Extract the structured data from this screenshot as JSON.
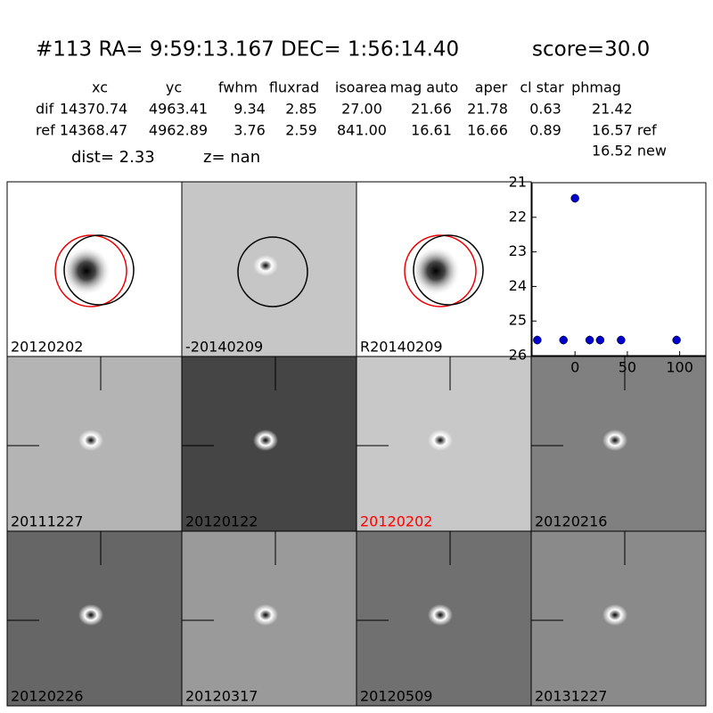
{
  "header": {
    "title": "#113   RA= 9:59:13.167 DEC= 1:56:14.40",
    "score": "score=30.0",
    "table": {
      "columns": [
        "xc",
        "yc",
        "fwhm",
        "fluxrad",
        "isoarea",
        "mag auto",
        "aper",
        "cl star",
        "phmag"
      ],
      "rows": [
        {
          "label": "dif",
          "cells": [
            "14370.74",
            "4963.41",
            "9.34",
            "2.85",
            "27.00",
            "21.66",
            "21.78",
            "0.63",
            "21.42"
          ]
        },
        {
          "label": "ref",
          "cells": [
            "14368.47",
            "4962.89",
            "3.76",
            "2.59",
            "841.00",
            "16.61",
            "16.66",
            "0.89",
            "16.57 ref"
          ]
        }
      ],
      "note": "16.52 new"
    },
    "dist": "dist=  2.33",
    "z": "z=   nan"
  },
  "panels": [
    {
      "label": "20120202"
    },
    {
      "label": "-20140209"
    },
    {
      "label": "R20140209"
    },
    {
      "label": "20111227"
    },
    {
      "label": "20120122"
    },
    {
      "label": "20120202",
      "color": "#ff0000"
    },
    {
      "label": "20120216"
    },
    {
      "label": "20120226"
    },
    {
      "label": "20120317"
    },
    {
      "label": "20120509"
    },
    {
      "label": "20131227"
    }
  ],
  "chart_data": {
    "type": "scatter",
    "color": "#0000cc",
    "x": [
      -36,
      -11,
      0,
      14,
      24,
      44,
      97
    ],
    "values": [
      25.55,
      25.55,
      21.45,
      25.55,
      25.55,
      25.55,
      25.55
    ],
    "xlim": [
      -41,
      125
    ],
    "ylim": [
      26,
      21
    ],
    "xticks": [
      0,
      50,
      100
    ],
    "yticks": [
      21,
      22,
      23,
      24,
      25,
      26
    ]
  }
}
